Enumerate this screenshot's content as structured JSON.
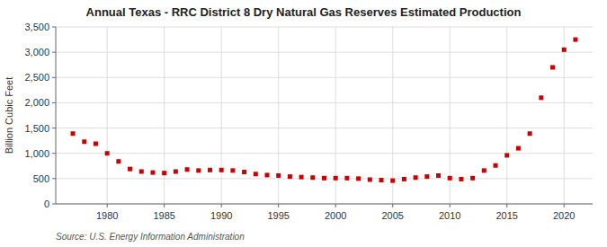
{
  "chart_data": {
    "type": "scatter",
    "title": "Annual Texas - RRC District 8 Dry Natural Gas Reserves Estimated Production",
    "y_label": "Billion Cubic Feet",
    "annotations": [
      "Source: U.S. Energy Information Administration"
    ],
    "x": [
      1977,
      1978,
      1979,
      1980,
      1981,
      1982,
      1983,
      1984,
      1985,
      1986,
      1987,
      1988,
      1989,
      1990,
      1991,
      1992,
      1993,
      1994,
      1995,
      1996,
      1997,
      1998,
      1999,
      2000,
      2001,
      2002,
      2003,
      2004,
      2005,
      2006,
      2007,
      2008,
      2009,
      2010,
      2011,
      2012,
      2013,
      2014,
      2015,
      2016,
      2017,
      2018,
      2019,
      2020,
      2021
    ],
    "values": [
      1390,
      1230,
      1190,
      1000,
      840,
      690,
      640,
      620,
      610,
      640,
      680,
      660,
      670,
      670,
      660,
      630,
      590,
      570,
      560,
      540,
      530,
      520,
      510,
      510,
      510,
      500,
      480,
      470,
      460,
      490,
      520,
      540,
      560,
      510,
      490,
      510,
      660,
      760,
      960,
      1100,
      1390,
      2100,
      2700,
      3050,
      3250
    ],
    "color": "#cc0000",
    "marker": "square",
    "xlim": [
      1975.5,
      2022.5
    ],
    "xticks": [
      1980,
      1985,
      1990,
      1995,
      2000,
      2005,
      2010,
      2015,
      2020
    ],
    "ylim": [
      0,
      3500
    ],
    "yticks": [
      0,
      500,
      {
        "value": 1000,
        "label": "1,000"
      },
      {
        "value": 1500,
        "label": "1,500"
      },
      {
        "value": 2000,
        "label": "2,000"
      },
      {
        "value": 2500,
        "label": "2,500"
      },
      {
        "value": 3000,
        "label": "3,000"
      },
      {
        "value": 3500,
        "label": "3,500"
      }
    ],
    "grid": true
  }
}
